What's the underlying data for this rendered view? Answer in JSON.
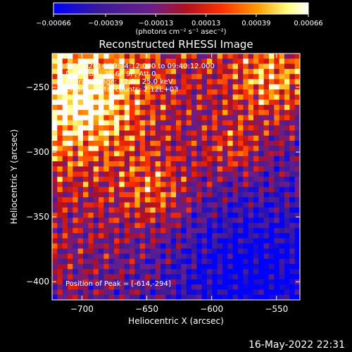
{
  "chart_data": {
    "type": "heatmap",
    "title": "Reconstructed RHESSI Image",
    "xlabel": "Heliocentric X (arcsec)",
    "ylabel": "Heliocentric Y (arcsec)",
    "xlim": [
      -723,
      -532
    ],
    "ylim": [
      -414,
      -224
    ],
    "x_ticks": [
      -700,
      -650,
      -600,
      -550
    ],
    "y_ticks": [
      -400,
      -350,
      -300,
      -250
    ],
    "colorbar": {
      "range": [
        -0.00066,
        0.00066
      ],
      "ticks": [
        "-0.00066",
        "-0.00039",
        "-0.00013",
        "0.00013",
        "0.00039",
        "0.00066"
      ],
      "unit_label": "(photons cm⁻² s⁻¹ asec⁻²)",
      "colors": [
        "#0000ff",
        "#3a1a9a",
        "#6a1f8a",
        "#b01020",
        "#ff3000",
        "#ff9a00",
        "#ffff80",
        "#ffffff"
      ]
    },
    "annotations": [
      "7-Sep-2014 09:34:12.000 to 09:40:12.000",
      "Detectors: 3F 6F 9F, Att 0",
      "Energy Range: 12.0 - 25.0 keV",
      "Clean     Total counts: 2.12E+03"
    ],
    "peak_label": "Position of Peak = [-614,-294]",
    "timestamp": "16-May-2022 22:31"
  }
}
